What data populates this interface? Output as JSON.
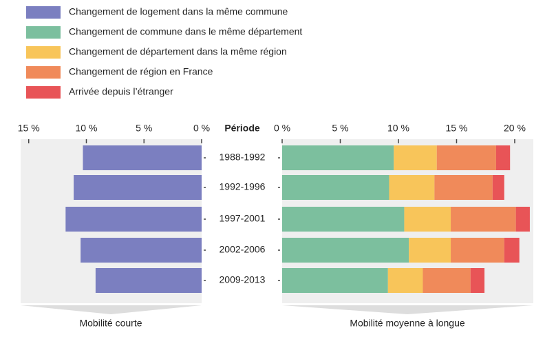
{
  "period_label": "Période",
  "chart_data": [
    {
      "type": "bar",
      "orientation": "horizontal",
      "x_reversed": true,
      "label": "Mobilité courte",
      "categories": [
        "1988-1992",
        "1992-1996",
        "1997-2001",
        "2002-2006",
        "2009-2013"
      ],
      "series": [
        {
          "name": "Changement de logement dans la même commune",
          "color": "#7b7fc0",
          "values": [
            10.3,
            11.1,
            11.8,
            10.5,
            9.2
          ]
        }
      ],
      "xlim": [
        0,
        15.7
      ],
      "xticks": [
        {
          "value": 15,
          "label": "15 %"
        },
        {
          "value": 10,
          "label": "10 %"
        },
        {
          "value": 5,
          "label": "5 %"
        },
        {
          "value": 0,
          "label": "0 %"
        }
      ]
    },
    {
      "type": "stacked_bar",
      "orientation": "horizontal",
      "x_reversed": false,
      "label": "Mobilité moyenne à longue",
      "series": [
        {
          "name": "Changement de commune dans le même département",
          "color": "#7cbf9e",
          "values": [
            9.6,
            9.2,
            10.5,
            10.9,
            9.1
          ]
        },
        {
          "name": "Changement de département dans la même région",
          "color": "#f8c55a",
          "values": [
            3.7,
            3.9,
            4.0,
            3.6,
            3.0
          ]
        },
        {
          "name": "Changement de région en France",
          "color": "#f08a5a",
          "values": [
            5.1,
            5.0,
            5.6,
            4.6,
            4.1
          ]
        },
        {
          "name": "Arrivée depuis l’étranger",
          "color": "#e85457",
          "values": [
            1.2,
            1.0,
            1.2,
            1.3,
            1.2
          ]
        }
      ],
      "xlim": [
        0,
        21.6
      ],
      "xticks": [
        {
          "value": 0,
          "label": "0 %"
        },
        {
          "value": 5,
          "label": "5 %"
        },
        {
          "value": 10,
          "label": "10 %"
        },
        {
          "value": 15,
          "label": "15 %"
        },
        {
          "value": 20,
          "label": "20 %"
        }
      ]
    }
  ]
}
